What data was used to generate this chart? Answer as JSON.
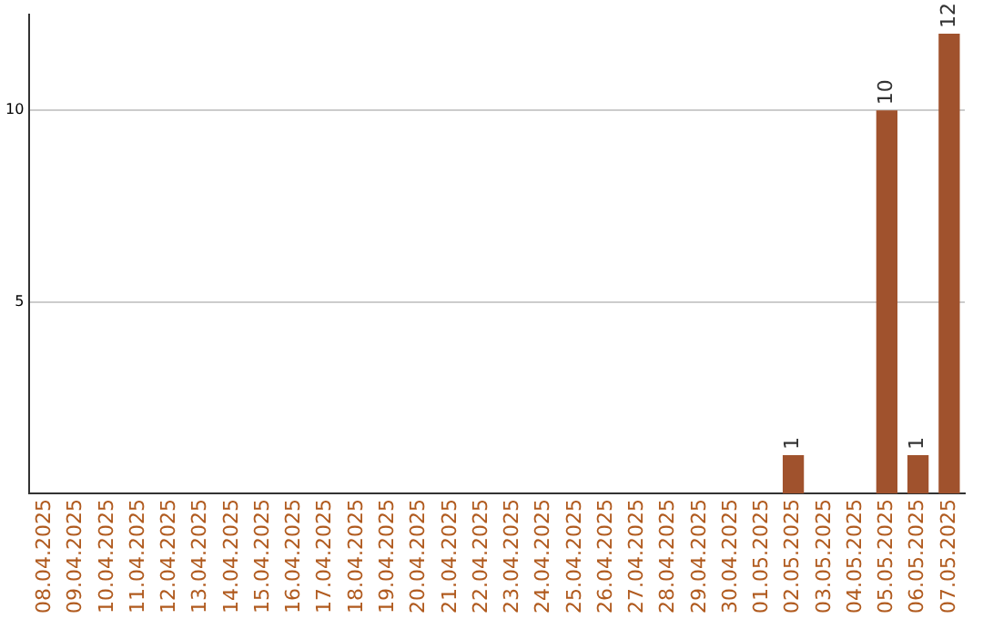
{
  "chart_data": {
    "type": "bar",
    "categories": [
      "08.04.2025",
      "09.04.2025",
      "10.04.2025",
      "11.04.2025",
      "12.04.2025",
      "13.04.2025",
      "14.04.2025",
      "15.04.2025",
      "16.04.2025",
      "17.04.2025",
      "18.04.2025",
      "19.04.2025",
      "20.04.2025",
      "21.04.2025",
      "22.04.2025",
      "23.04.2025",
      "24.04.2025",
      "25.04.2025",
      "26.04.2025",
      "27.04.2025",
      "28.04.2025",
      "29.04.2025",
      "30.04.2025",
      "01.05.2025",
      "02.05.2025",
      "03.05.2025",
      "04.05.2025",
      "05.05.2025",
      "06.05.2025",
      "07.05.2025"
    ],
    "values": [
      0,
      0,
      0,
      0,
      0,
      0,
      0,
      0,
      0,
      0,
      0,
      0,
      0,
      0,
      0,
      0,
      0,
      0,
      0,
      0,
      0,
      0,
      0,
      0,
      1,
      0,
      0,
      10,
      1,
      12
    ],
    "value_labels": [
      null,
      null,
      null,
      null,
      null,
      null,
      null,
      null,
      null,
      null,
      null,
      null,
      null,
      null,
      null,
      null,
      null,
      null,
      null,
      null,
      null,
      null,
      null,
      null,
      "1",
      null,
      null,
      "10",
      "1",
      "12"
    ],
    "color": "#a0522d",
    "ylim": [
      0,
      12.5
    ],
    "yticks": [
      5,
      10
    ],
    "grid": "y",
    "legend": false
  }
}
